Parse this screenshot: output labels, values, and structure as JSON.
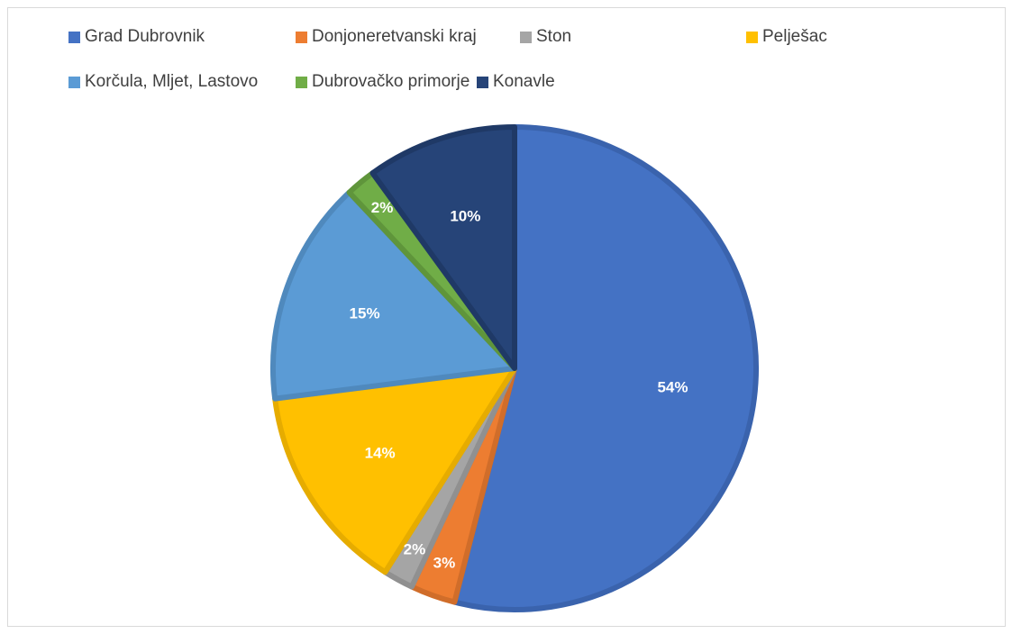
{
  "chart_data": {
    "type": "pie",
    "title": "",
    "legend_position": "top",
    "categories": [
      "Grad Dubrovnik",
      "Donjoneretvanski kraj",
      "Ston",
      "Pelješac",
      "Korčula, Mljet, Lastovo",
      "Dubrovačko primorje",
      "Konavle"
    ],
    "values": [
      54,
      3,
      2,
      14,
      15,
      2,
      10
    ],
    "labels": [
      "54%",
      "3%",
      "2%",
      "14%",
      "15%",
      "2%",
      "10%"
    ],
    "colors": [
      "#4472c4",
      "#ed7d31",
      "#a5a5a5",
      "#ffc000",
      "#5b9bd5",
      "#70ad47",
      "#264478"
    ],
    "edge_colors": [
      "#3a63ad",
      "#d06d2a",
      "#909090",
      "#e6ac00",
      "#4f89bd",
      "#5f953b",
      "#1f3966"
    ]
  }
}
